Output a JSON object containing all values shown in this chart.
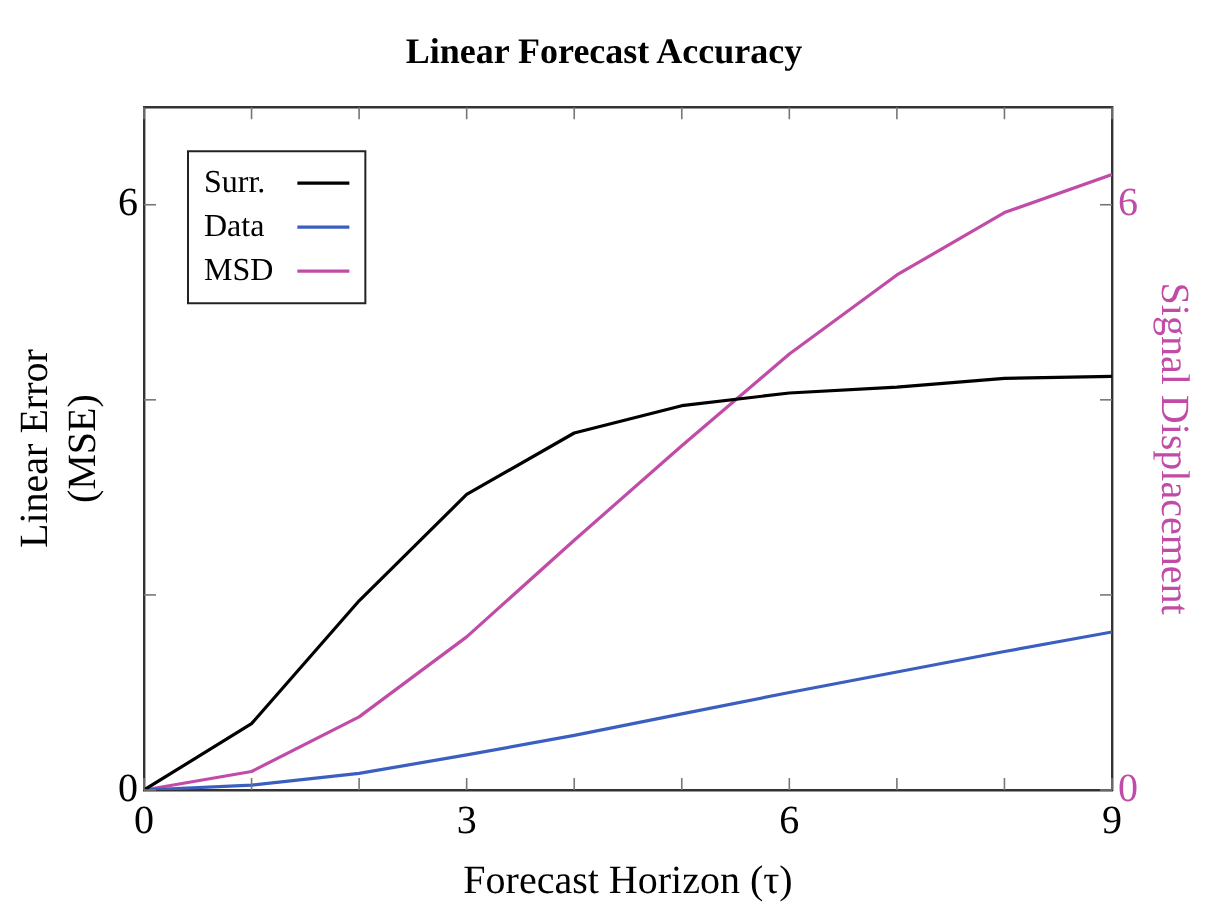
{
  "chart_data": {
    "type": "line",
    "title": "Linear Forecast Accuracy",
    "xlabel": "Forecast Horizon (τ)",
    "ylabel": "Linear Error\n(MSE)",
    "y2label": "Signal Displacement",
    "x": [
      0,
      1,
      2,
      3,
      4,
      5,
      6,
      7,
      8,
      9
    ],
    "series": [
      {
        "name": "Surr.",
        "color": "#000000",
        "values": [
          0,
          0.68,
          1.94,
          3.03,
          3.66,
          3.94,
          4.07,
          4.13,
          4.22,
          4.24
        ]
      },
      {
        "name": "Data",
        "color": "#3b5fc0",
        "values": [
          0,
          0.05,
          0.17,
          0.36,
          0.56,
          0.78,
          1.0,
          1.21,
          1.42,
          1.62
        ]
      },
      {
        "name": "MSD",
        "color": "#c04ca8",
        "axis": "y2",
        "values": [
          0,
          0.19,
          0.75,
          1.57,
          2.56,
          3.53,
          4.47,
          5.28,
          5.92,
          6.31
        ]
      }
    ],
    "xlim": [
      0,
      9
    ],
    "xticks": [
      0,
      {
        "value": 1,
        "label": null
      },
      {
        "value": 2,
        "label": null
      },
      3,
      {
        "value": 4,
        "label": null
      },
      {
        "value": 5,
        "label": null
      },
      6,
      {
        "value": 7,
        "label": null
      },
      {
        "value": 8,
        "label": null
      },
      9
    ],
    "ylim": [
      0,
      7
    ],
    "yticks": [
      0,
      {
        "value": 2,
        "label": null
      },
      {
        "value": 4,
        "label": null
      },
      6
    ],
    "y2lim": [
      0,
      7
    ],
    "y2ticks": [
      0,
      {
        "value": 2,
        "label": null
      },
      {
        "value": 4,
        "label": null
      },
      6
    ],
    "grid": false,
    "legend": "top left",
    "marker": "none",
    "line_style": "solid"
  }
}
